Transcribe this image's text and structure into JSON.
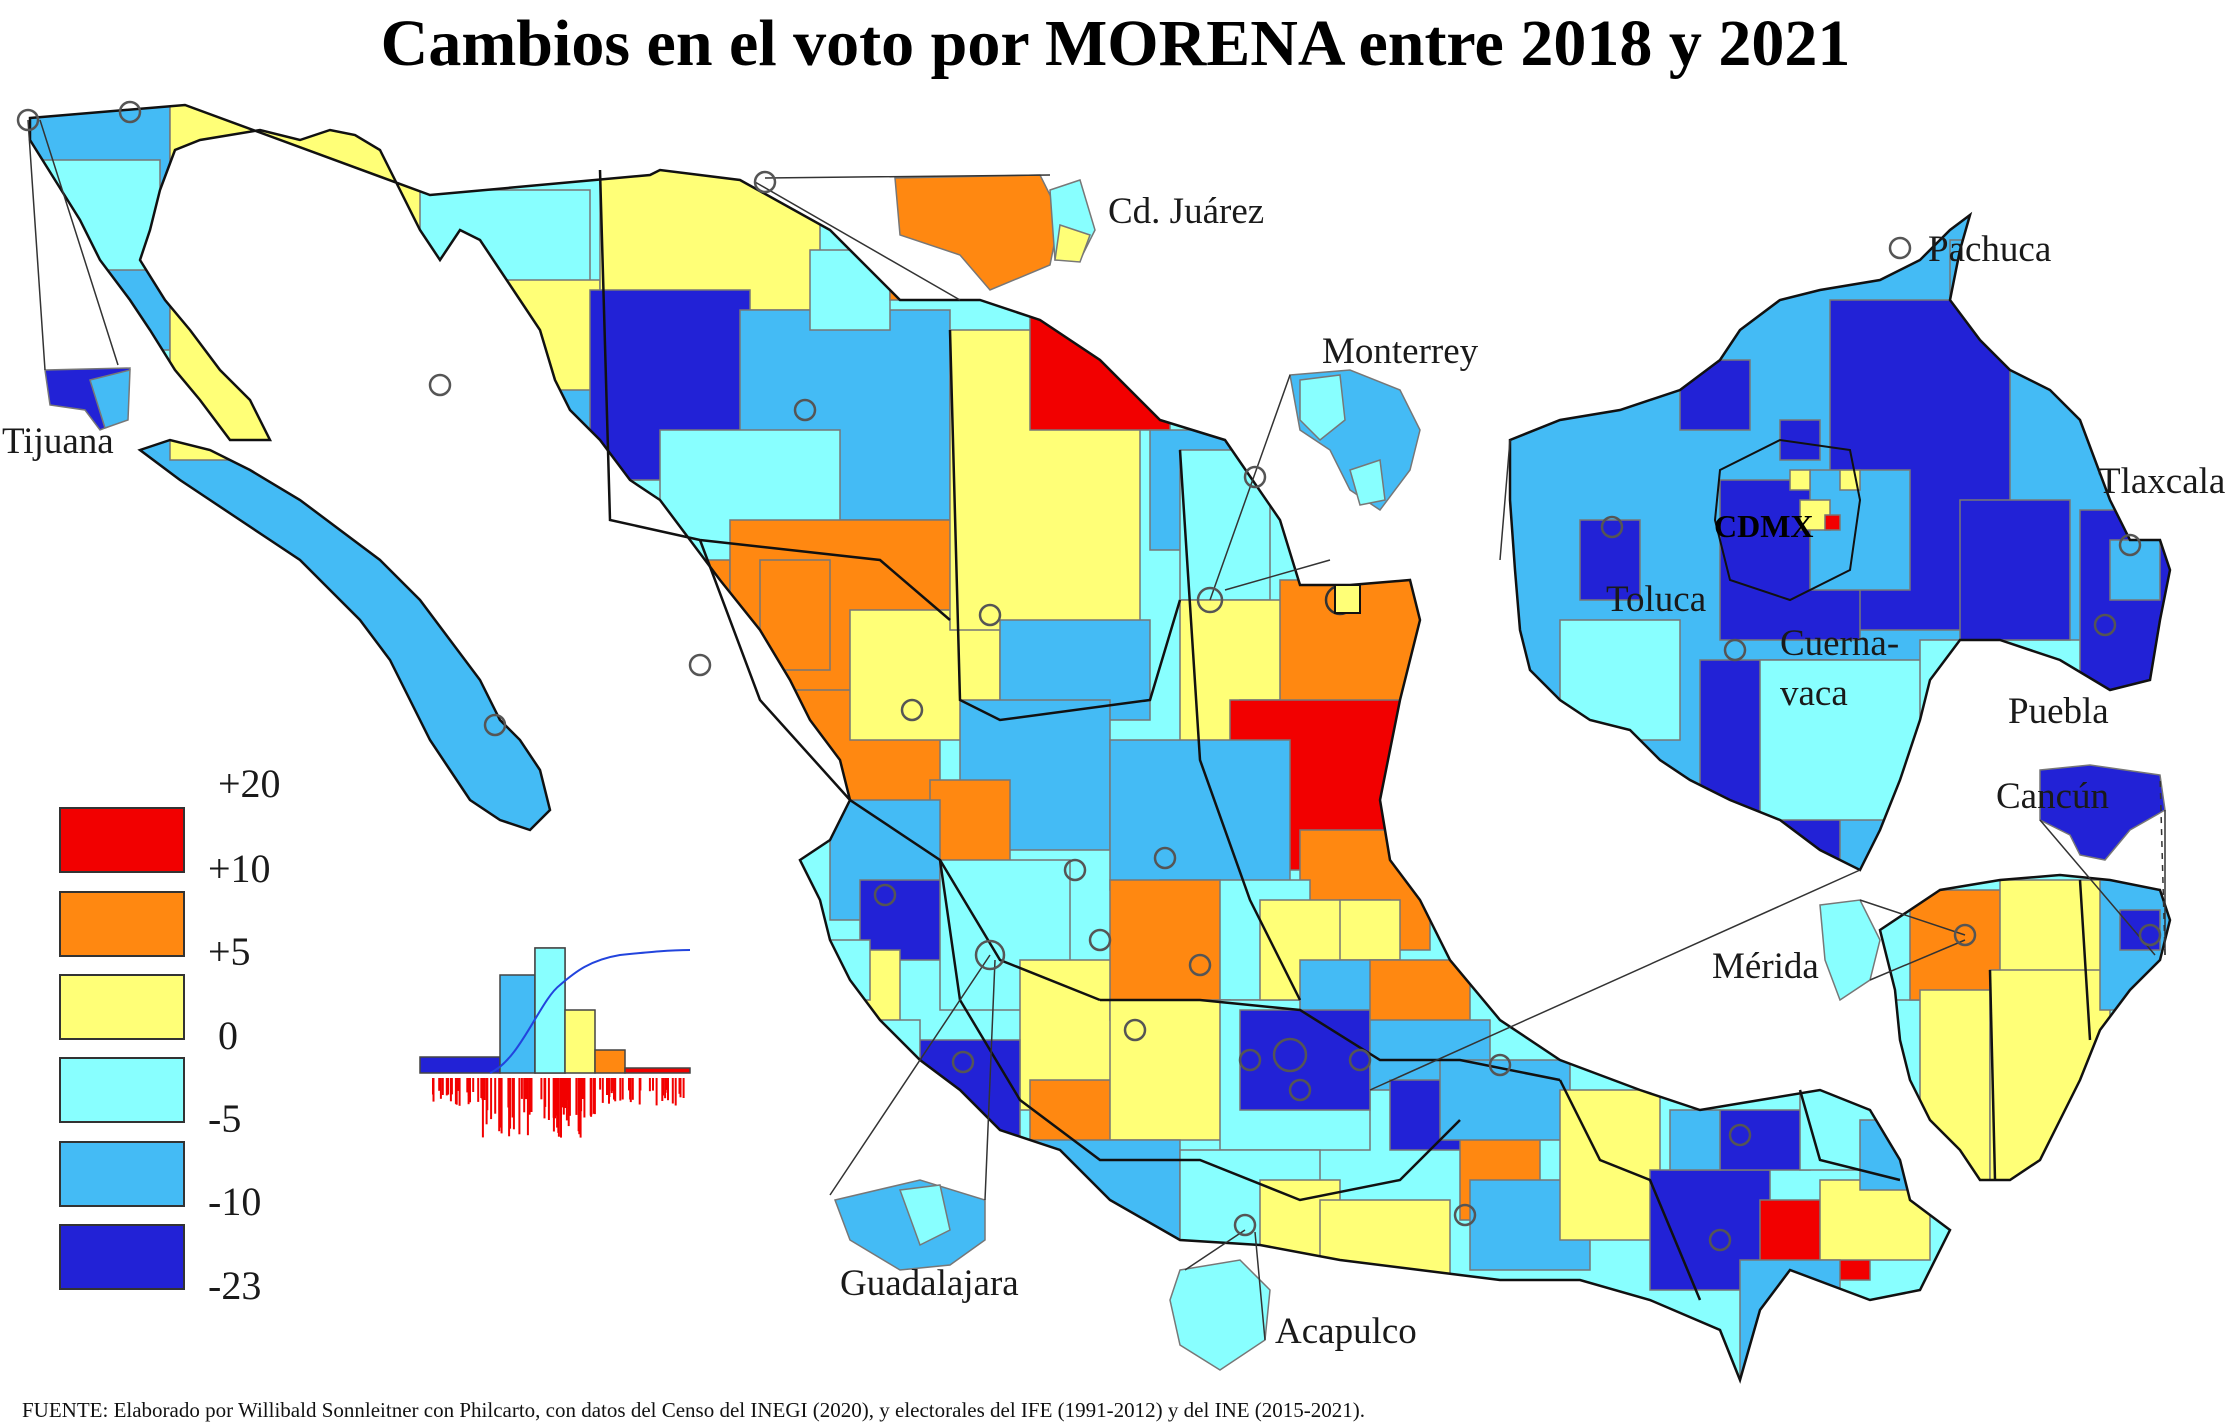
{
  "title": "Cambios en el voto por MORENA entre 2018 y 2021",
  "colors": {
    "d_red": "#f20000",
    "d_orange": "#ff8811",
    "d_yellow": "#ffff77",
    "d_lightcyan": "#88ffff",
    "d_skyblue": "#44bbf5",
    "d_darkblue": "#2222d6",
    "border": "#555555"
  },
  "legend": {
    "breaks": [
      "+20",
      "+10",
      "+5",
      "0",
      "-5",
      "-10",
      "-23"
    ],
    "classes": [
      {
        "range": "+10 a +20",
        "color_key": "d_red"
      },
      {
        "range": "+5 a +10",
        "color_key": "d_orange"
      },
      {
        "range": "0 a +5",
        "color_key": "d_yellow"
      },
      {
        "range": "-5 a 0",
        "color_key": "d_lightcyan"
      },
      {
        "range": "-10 a -5",
        "color_key": "d_skyblue"
      },
      {
        "range": "-23 a -10",
        "color_key": "d_darkblue"
      }
    ]
  },
  "cities": {
    "tijuana": "Tijuana",
    "juarez": "Cd. Juárez",
    "monterrey": "Monterrey",
    "pachuca": "Pachuca",
    "tlaxcala": "Tlaxcala",
    "cdmx": "CDMX",
    "toluca": "Toluca",
    "cuernavaca_1": "Cuerna-",
    "cuernavaca_2": "vaca",
    "puebla": "Puebla",
    "cancun": "Cancún",
    "merida": "Mérida",
    "guadalajara": "Guadalajara",
    "acapulco": "Acapulco"
  },
  "source": "FUENTE: Elaborado por Willibald Sonnleitner con Philcarto, con datos del Censo del INEGI (2020), y electorales del IFE (1991-2012) y del INE (2015-2021)."
}
